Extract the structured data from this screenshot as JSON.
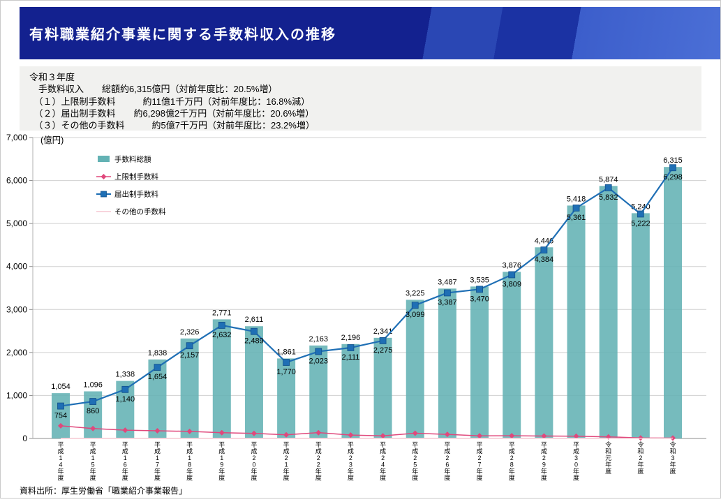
{
  "header": {
    "title": "有料職業紹介事業に関する手数料収入の推移"
  },
  "summary": {
    "lines": [
      "令和３年度",
      "　手数料収入　　総額約6,315億円（対前年度比：20.5%増）",
      "　（１）上限制手数料　　　約11億1千万円（対前年度比：16.8%減）",
      "　（２）届出制手数料　　約6,298億2千万円（対前年度比：20.6%増）",
      "　（３）その他の手数料　　　約5億7千万円（対前年度比：23.2%増）"
    ]
  },
  "chart_data": {
    "type": "bar+line",
    "title": "有料職業紹介事業に関する手数料収入の推移",
    "unit_label": "(億円)",
    "ylim": [
      0,
      7000
    ],
    "ytick": 1000,
    "grid": true,
    "legend_position": "top-left",
    "categories": [
      "平成14年度",
      "平成15年度",
      "平成16年度",
      "平成17年度",
      "平成18年度",
      "平成19年度",
      "平成20年度",
      "平成21年度",
      "平成22年度",
      "平成23年度",
      "平成24年度",
      "平成25年度",
      "平成26年度",
      "平成27年度",
      "平成28年度",
      "平成29年度",
      "平成30年度",
      "令和元年度",
      "令和2年度",
      "令和3年度"
    ],
    "series": [
      {
        "key": "total",
        "name": "手数料総額",
        "type": "bar",
        "color": "#63b2b4",
        "labeled": true,
        "values": [
          1054,
          1096,
          1338,
          1838,
          2326,
          2771,
          2611,
          1861,
          2163,
          2196,
          2341,
          3225,
          3487,
          3535,
          3876,
          4446,
          5418,
          5874,
          5240,
          6315
        ]
      },
      {
        "key": "upper-limit",
        "name": "上限制手数料",
        "type": "line",
        "marker": "diamond",
        "color": "#e0487c",
        "labeled": false,
        "values": [
          295,
          231,
          193,
          179,
          164,
          134,
          117,
          86,
          135,
          80,
          61,
          121,
          95,
          60,
          62,
          57,
          52,
          37,
          13,
          11
        ]
      },
      {
        "key": "notification",
        "name": "届出制手数料",
        "type": "line",
        "marker": "square",
        "color": "#1f6fb5",
        "marker_edge": "#11508a",
        "labeled": true,
        "values": [
          754,
          860,
          1140,
          1654,
          2157,
          2632,
          2489,
          1770,
          2023,
          2111,
          2275,
          3099,
          3387,
          3470,
          3809,
          4384,
          5361,
          5832,
          5222,
          6298
        ]
      },
      {
        "key": "other",
        "name": "その他の手数料",
        "type": "line",
        "marker": "none",
        "color": "#f5c6d0",
        "labeled": false,
        "values": [
          5,
          5,
          5,
          5,
          5,
          5,
          5,
          5,
          5,
          5,
          5,
          5,
          5,
          5,
          5,
          5,
          5,
          5,
          5,
          6
        ]
      }
    ]
  },
  "footer": {
    "source": "資料出所：厚生労働省「職業紹介事業報告」"
  }
}
